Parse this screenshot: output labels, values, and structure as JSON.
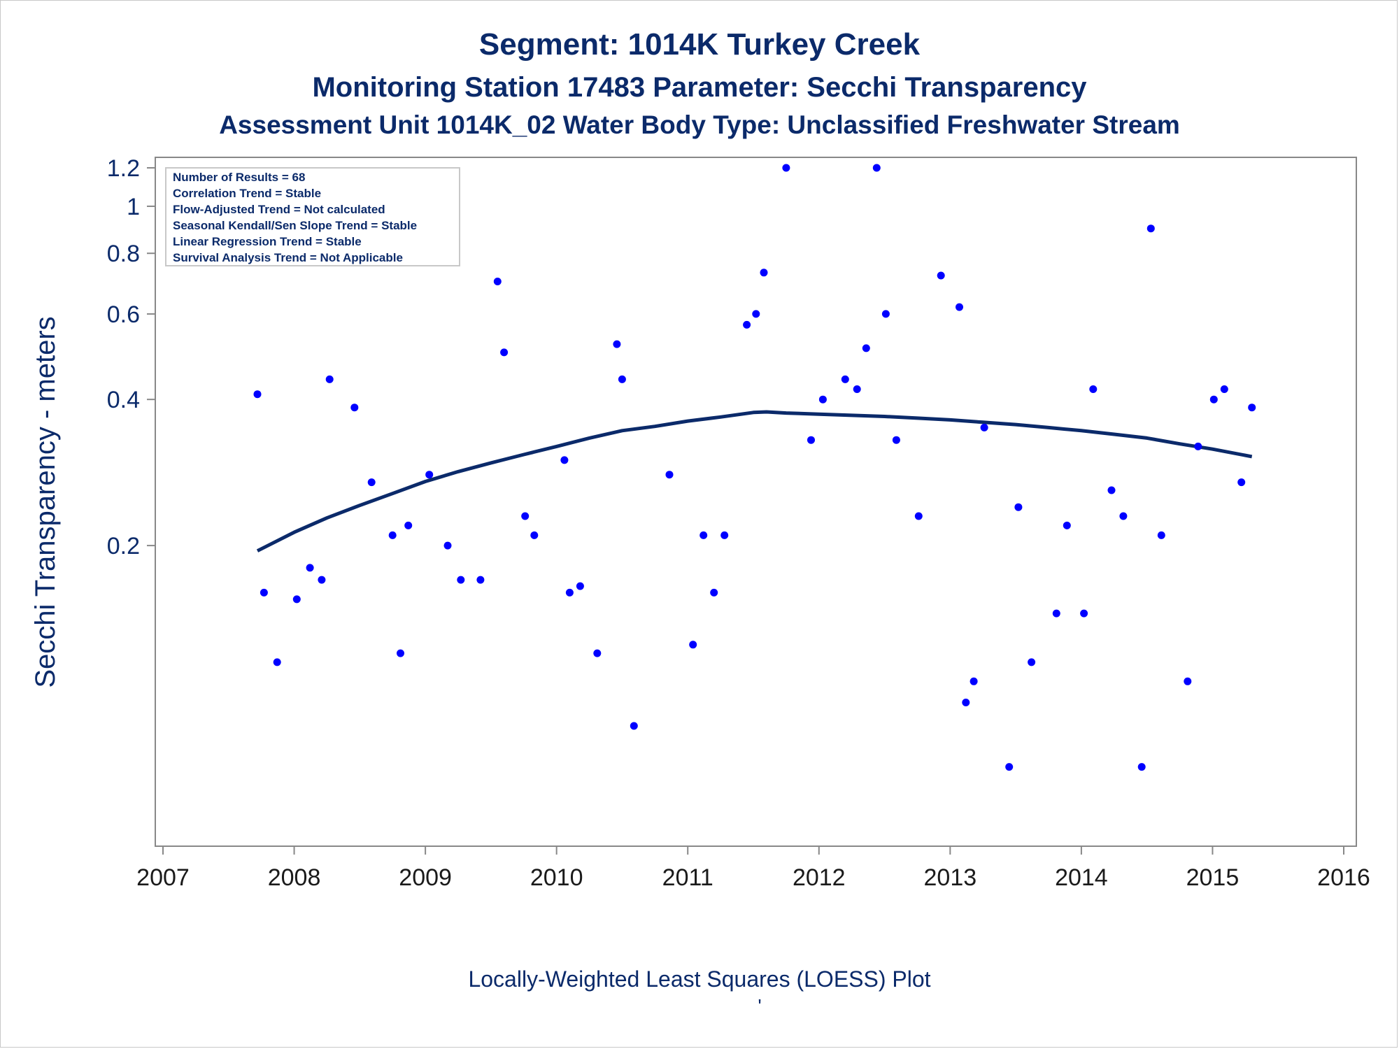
{
  "titles": {
    "line1": "Segment: 1014K  Turkey Creek",
    "line2": "Monitoring Station 17483 Parameter: Secchi Transparency",
    "line3": "Assessment Unit 1014K_02   Water Body Type: Unclassified Freshwater Stream"
  },
  "footnote": "Locally-Weighted Least Squares (LOESS) Plot",
  "footnote_mark": "'",
  "stats_box": [
    "Number of Results = 68",
    "Correlation Trend = Stable",
    "Flow-Adjusted Trend = Not calculated",
    "Seasonal Kendall/Sen Slope Trend = Stable",
    "Linear Regression Trend = Stable",
    "Survival Analysis Trend = Not Applicable"
  ],
  "chart_data": {
    "type": "scatter",
    "xlabel": "",
    "ylabel": "Secchi Transparency - meters",
    "y_scale": "log",
    "xlim": [
      2007,
      2016
    ],
    "ylim": [
      0.05,
      1.2
    ],
    "x_ticks": [
      2007,
      2008,
      2009,
      2010,
      2011,
      2012,
      2013,
      2014,
      2015,
      2016
    ],
    "y_ticks": [
      0.2,
      0.4,
      0.6,
      0.8,
      1,
      1.2
    ],
    "y_tick_labels": [
      "0.2",
      "0.4",
      "0.6",
      "0.8",
      "1",
      "1.2"
    ],
    "grid": false,
    "points_color": "#0000ff",
    "line_color": "#0b2a6a",
    "series": [
      {
        "kind": "points",
        "x": [
          2007.72,
          2007.77,
          2007.87,
          2008.02,
          2008.12,
          2008.21,
          2008.27,
          2008.46,
          2008.59,
          2008.75,
          2008.81,
          2008.87,
          2009.03,
          2009.17,
          2009.27,
          2009.42,
          2009.55,
          2009.6,
          2009.76,
          2009.83,
          2010.06,
          2010.1,
          2010.18,
          2010.31,
          2010.46,
          2010.5,
          2010.59,
          2010.86,
          2011.04,
          2011.12,
          2011.2,
          2011.28,
          2011.45,
          2011.52,
          2011.58,
          2011.75,
          2011.94,
          2012.03,
          2012.2,
          2012.29,
          2012.36,
          2012.44,
          2012.51,
          2012.59,
          2012.76,
          2012.93,
          2013.07,
          2013.12,
          2013.18,
          2013.26,
          2013.45,
          2013.52,
          2013.62,
          2013.81,
          2013.89,
          2014.02,
          2014.09,
          2014.23,
          2014.32,
          2014.46,
          2014.53,
          2014.61,
          2014.81,
          2014.89,
          2015.01,
          2015.09,
          2015.22,
          2015.3
        ],
        "y": [
          0.41,
          0.16,
          0.115,
          0.155,
          0.18,
          0.17,
          0.44,
          0.385,
          0.27,
          0.21,
          0.12,
          0.22,
          0.28,
          0.2,
          0.17,
          0.17,
          0.7,
          0.5,
          0.23,
          0.21,
          0.3,
          0.16,
          0.165,
          0.12,
          0.52,
          0.44,
          0.085,
          0.28,
          0.125,
          0.21,
          0.16,
          0.21,
          0.57,
          0.6,
          0.73,
          1.2,
          0.33,
          0.4,
          0.44,
          0.42,
          0.51,
          1.2,
          0.6,
          0.33,
          0.23,
          0.72,
          0.62,
          0.095,
          0.105,
          0.35,
          0.07,
          0.24,
          0.115,
          0.145,
          0.22,
          0.145,
          0.42,
          0.26,
          0.23,
          0.07,
          0.9,
          0.21,
          0.105,
          0.32,
          0.4,
          0.42,
          0.27,
          0.385
        ]
      },
      {
        "kind": "loess_line",
        "x": [
          2007.72,
          2008.0,
          2008.25,
          2008.5,
          2008.75,
          2009.0,
          2009.25,
          2009.5,
          2009.75,
          2010.0,
          2010.25,
          2010.5,
          2010.75,
          2011.0,
          2011.25,
          2011.5,
          2011.6,
          2011.75,
          2012.0,
          2012.25,
          2012.5,
          2012.75,
          2013.0,
          2013.25,
          2013.5,
          2013.75,
          2014.0,
          2014.25,
          2014.5,
          2014.75,
          2015.0,
          2015.3
        ],
        "y": [
          0.195,
          0.213,
          0.228,
          0.242,
          0.256,
          0.271,
          0.284,
          0.296,
          0.308,
          0.32,
          0.333,
          0.345,
          0.352,
          0.361,
          0.368,
          0.376,
          0.377,
          0.375,
          0.373,
          0.371,
          0.369,
          0.366,
          0.363,
          0.359,
          0.355,
          0.35,
          0.345,
          0.339,
          0.333,
          0.324,
          0.316,
          0.305
        ]
      }
    ]
  }
}
